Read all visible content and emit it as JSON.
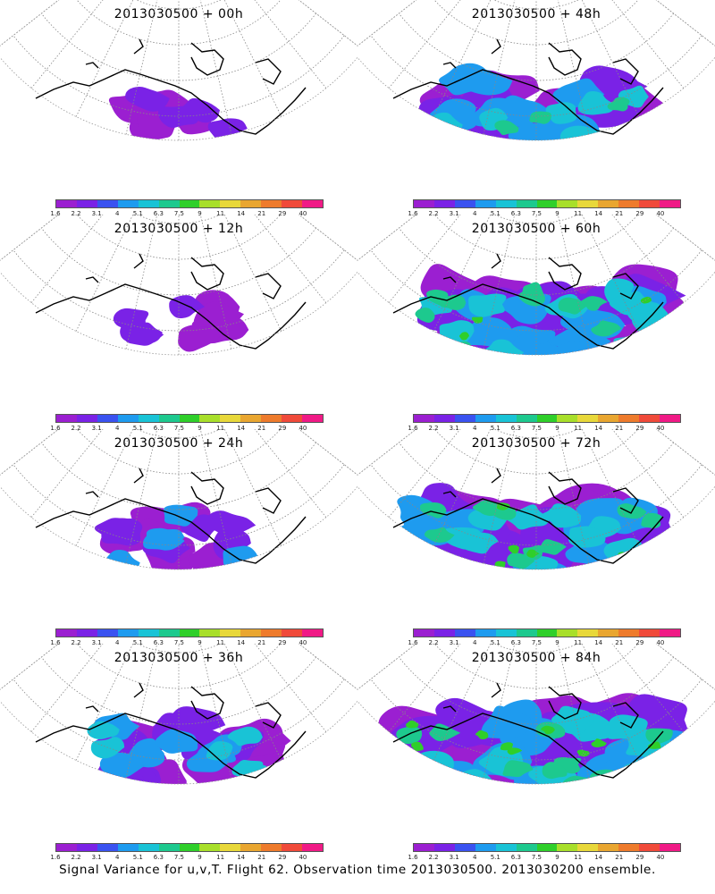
{
  "caption": "Signal Variance for u,v,T. Flight 62. Observation time 2013030500. 2013030200 ensemble.",
  "colorbar": {
    "ticks": [
      "1.6",
      "2.2",
      "3.1",
      "4",
      "5.1",
      "6.3",
      "7.5",
      "9",
      "11",
      "14",
      "21",
      "29",
      "40"
    ],
    "colors": [
      "#9b1fd1",
      "#7a22e6",
      "#3a52f0",
      "#1e9bef",
      "#19c3d6",
      "#1dc98e",
      "#2fcf2a",
      "#a8df2a",
      "#e8d83a",
      "#e9a630",
      "#ee7b2c",
      "#f04a3a",
      "#f01a86"
    ]
  },
  "panels": [
    {
      "title": "2013030500 + 00h",
      "level": 1
    },
    {
      "title": "2013030500 + 48h",
      "level": 4
    },
    {
      "title": "2013030500 + 12h",
      "level": 1
    },
    {
      "title": "2013030500 + 60h",
      "level": 5
    },
    {
      "title": "2013030500 + 24h",
      "level": 2
    },
    {
      "title": "2013030500 + 72h",
      "level": 5
    },
    {
      "title": "2013030500 + 36h",
      "level": 3
    },
    {
      "title": "2013030500 + 84h",
      "level": 6
    }
  ]
}
